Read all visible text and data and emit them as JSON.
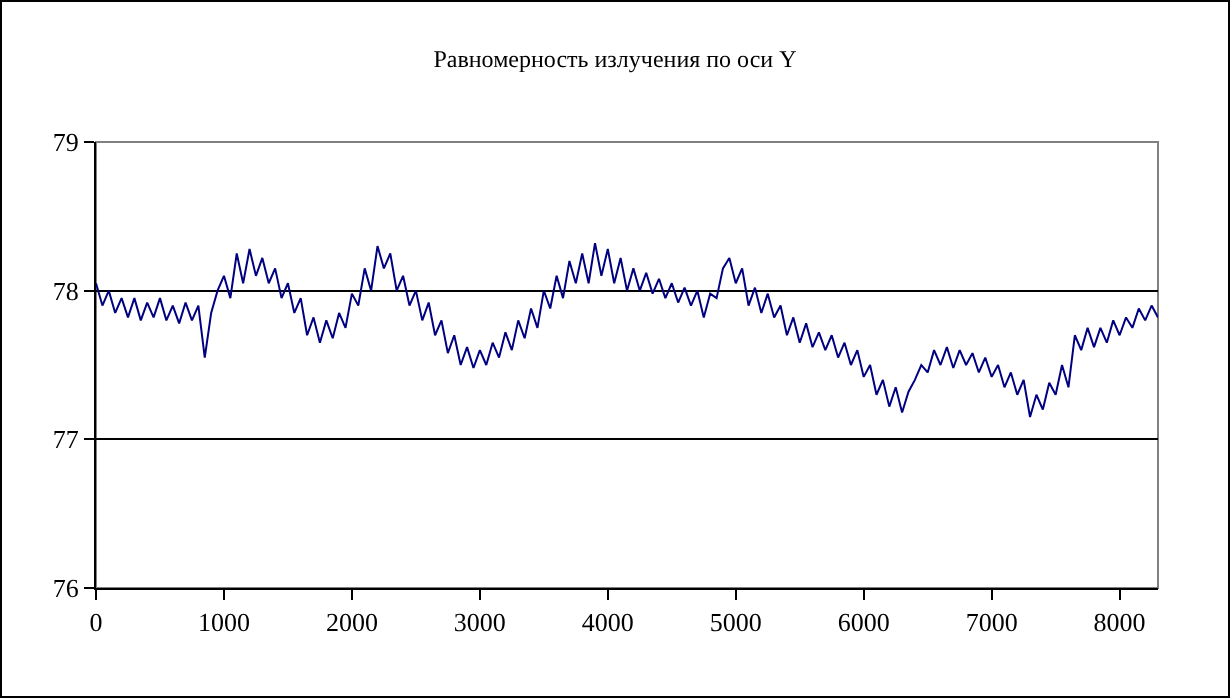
{
  "chart_data": {
    "type": "line",
    "title": "Равномерность излучения по оси Y",
    "x": [
      0,
      50,
      100,
      150,
      200,
      250,
      300,
      350,
      400,
      450,
      500,
      550,
      600,
      650,
      700,
      750,
      800,
      850,
      900,
      950,
      1000,
      1050,
      1100,
      1150,
      1200,
      1250,
      1300,
      1350,
      1400,
      1450,
      1500,
      1550,
      1600,
      1650,
      1700,
      1750,
      1800,
      1850,
      1900,
      1950,
      2000,
      2050,
      2100,
      2150,
      2200,
      2250,
      2300,
      2350,
      2400,
      2450,
      2500,
      2550,
      2600,
      2650,
      2700,
      2750,
      2800,
      2850,
      2900,
      2950,
      3000,
      3050,
      3100,
      3150,
      3200,
      3250,
      3300,
      3350,
      3400,
      3450,
      3500,
      3550,
      3600,
      3650,
      3700,
      3750,
      3800,
      3850,
      3900,
      3950,
      4000,
      4050,
      4100,
      4150,
      4200,
      4250,
      4300,
      4350,
      4400,
      4450,
      4500,
      4550,
      4600,
      4650,
      4700,
      4750,
      4800,
      4850,
      4900,
      4950,
      5000,
      5050,
      5100,
      5150,
      5200,
      5250,
      5300,
      5350,
      5400,
      5450,
      5500,
      5550,
      5600,
      5650,
      5700,
      5750,
      5800,
      5850,
      5900,
      5950,
      6000,
      6050,
      6100,
      6150,
      6200,
      6250,
      6300,
      6350,
      6400,
      6450,
      6500,
      6550,
      6600,
      6650,
      6700,
      6750,
      6800,
      6850,
      6900,
      6950,
      7000,
      7050,
      7100,
      7150,
      7200,
      7250,
      7300,
      7350,
      7400,
      7450,
      7500,
      7550,
      7600,
      7650,
      7700,
      7750,
      7800,
      7850,
      7900,
      7950,
      8000,
      8050,
      8100,
      8150,
      8200,
      8250,
      8300
    ],
    "series": [
      {
        "color": "#000080",
        "values": [
          78.05,
          77.9,
          78.0,
          77.85,
          77.95,
          77.82,
          77.95,
          77.8,
          77.92,
          77.82,
          77.95,
          77.8,
          77.9,
          77.78,
          77.92,
          77.8,
          77.9,
          77.55,
          77.85,
          78.0,
          78.1,
          77.95,
          78.25,
          78.05,
          78.28,
          78.1,
          78.22,
          78.05,
          78.15,
          77.95,
          78.05,
          77.85,
          77.95,
          77.7,
          77.82,
          77.65,
          77.8,
          77.68,
          77.85,
          77.75,
          77.98,
          77.9,
          78.15,
          78.0,
          78.3,
          78.15,
          78.25,
          78.0,
          78.1,
          77.9,
          78.0,
          77.8,
          77.92,
          77.7,
          77.8,
          77.58,
          77.7,
          77.5,
          77.62,
          77.48,
          77.6,
          77.5,
          77.65,
          77.55,
          77.72,
          77.6,
          77.8,
          77.68,
          77.88,
          77.75,
          78.0,
          77.88,
          78.1,
          77.95,
          78.2,
          78.05,
          78.25,
          78.05,
          78.32,
          78.1,
          78.28,
          78.05,
          78.22,
          78.0,
          78.15,
          78.0,
          78.12,
          77.98,
          78.08,
          77.95,
          78.05,
          77.92,
          78.02,
          77.9,
          78.0,
          77.82,
          77.98,
          77.95,
          78.15,
          78.22,
          78.05,
          78.15,
          77.9,
          78.02,
          77.85,
          77.98,
          77.82,
          77.9,
          77.7,
          77.82,
          77.65,
          77.78,
          77.62,
          77.72,
          77.6,
          77.7,
          77.55,
          77.65,
          77.5,
          77.6,
          77.42,
          77.5,
          77.3,
          77.4,
          77.22,
          77.35,
          77.18,
          77.32,
          77.4,
          77.5,
          77.45,
          77.6,
          77.5,
          77.62,
          77.48,
          77.6,
          77.5,
          77.58,
          77.45,
          77.55,
          77.42,
          77.5,
          77.35,
          77.45,
          77.3,
          77.4,
          77.15,
          77.3,
          77.2,
          77.38,
          77.3,
          77.5,
          77.35,
          77.7,
          77.6,
          77.75,
          77.62,
          77.75,
          77.65,
          77.8,
          77.7,
          77.82,
          77.75,
          77.88,
          77.8,
          77.9,
          77.82
        ]
      }
    ],
    "xlim": [
      0,
      8300
    ],
    "xticks": [
      0,
      1000,
      2000,
      3000,
      4000,
      5000,
      6000,
      7000,
      8000
    ],
    "ylim": [
      76,
      79
    ],
    "yticks": [
      76,
      77,
      78,
      79
    ],
    "grid": "y",
    "marker": "none",
    "line_style": "solid"
  }
}
